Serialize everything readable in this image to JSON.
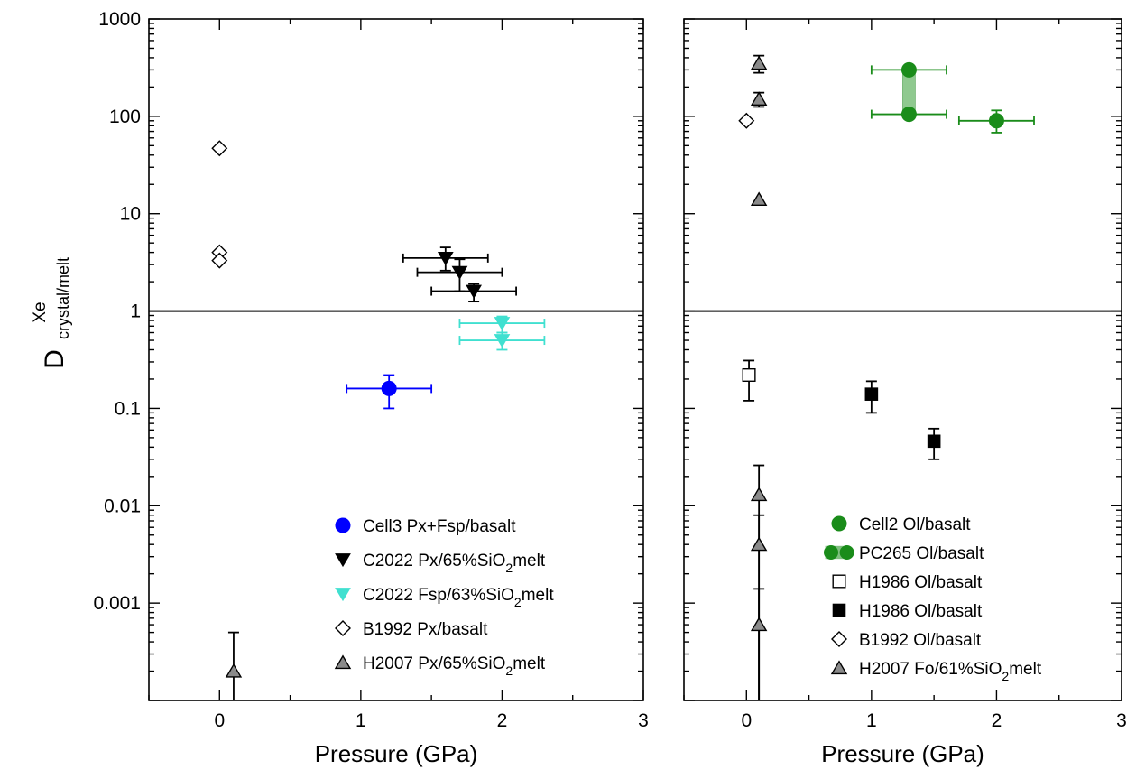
{
  "chart_data": [
    {
      "type": "scatter",
      "panel": "left",
      "xlabel": "Pressure (GPa)",
      "ylabel_main": "D",
      "ylabel_sup": "Xe",
      "ylabel_sub": "crystal/melt",
      "xlim": [
        -0.5,
        3
      ],
      "ylim": [
        0.0001,
        1000
      ],
      "yscale": "log",
      "x_ticks": [
        "0",
        "1",
        "2",
        "3"
      ],
      "y_ticks": [
        "1000",
        "100",
        "10",
        "1",
        "0.1",
        "0.01",
        "0.001"
      ],
      "reference_line_y": 1,
      "legend_position": "bottom-right",
      "series": [
        {
          "name": "Cell3 Px+Fsp/basalt",
          "marker": "circle",
          "color": "#0000ff",
          "points": [
            {
              "x": 1.2,
              "y": 0.16,
              "xerr": 0.3,
              "ylo": 0.1,
              "yhi": 0.22
            }
          ]
        },
        {
          "name": "C2022 Px/65%SiO2melt",
          "name_parts": [
            "C2022 Px/65%SiO",
            "2",
            "melt"
          ],
          "marker": "triangle-down",
          "color": "#000000",
          "points": [
            {
              "x": 1.6,
              "y": 3.5,
              "xerr": 0.3,
              "ylo": 2.6,
              "yhi": 4.5
            },
            {
              "x": 1.7,
              "y": 2.5,
              "xerr": 0.3,
              "ylo": 1.6,
              "yhi": 3.4
            },
            {
              "x": 1.8,
              "y": 1.6,
              "xerr": 0.3,
              "ylo": 1.25,
              "yhi": 1.9
            }
          ]
        },
        {
          "name": "C2022 Fsp/63%SiO2melt",
          "name_parts": [
            "C2022 Fsp/63%SiO",
            "2",
            "melt"
          ],
          "marker": "triangle-down",
          "color": "#40e0d0",
          "points": [
            {
              "x": 2.0,
              "y": 0.75,
              "xerr": 0.3,
              "ylo": 0.6,
              "yhi": 0.88
            },
            {
              "x": 2.0,
              "y": 0.5,
              "xerr": 0.3,
              "ylo": 0.4,
              "yhi": 0.6
            }
          ]
        },
        {
          "name": "B1992 Px/basalt",
          "marker": "diamond-open",
          "color": "#000000",
          "points": [
            {
              "x": 0,
              "y": 47
            },
            {
              "x": 0,
              "y": 4
            },
            {
              "x": 0,
              "y": 3.3
            }
          ]
        },
        {
          "name": "H2007 Px/65%SiO2melt",
          "name_parts": [
            "H2007 Px/65%SiO",
            "2",
            "melt"
          ],
          "marker": "triangle-up-gray",
          "color": "#808080",
          "points": [
            {
              "x": 0.1,
              "y": 0.0002,
              "ylo": 0.0001,
              "yhi": 0.0005
            }
          ]
        }
      ]
    },
    {
      "type": "scatter",
      "panel": "right",
      "xlabel": "Pressure (GPa)",
      "xlim": [
        -0.5,
        3
      ],
      "ylim": [
        0.0001,
        1000
      ],
      "yscale": "log",
      "x_ticks": [
        "0",
        "1",
        "2",
        "3"
      ],
      "reference_line_y": 1,
      "legend_position": "bottom-right",
      "series": [
        {
          "name": "Cell2 Ol/basalt",
          "marker": "circle",
          "color": "#1a8c1a",
          "points": [
            {
              "x": 2.0,
              "y": 90,
              "xerr": 0.3,
              "ylo": 68,
              "yhi": 115
            }
          ]
        },
        {
          "name": "PC265 Ol/basalt",
          "marker": "circle-pair",
          "color": "#1a8c1a",
          "points": [
            {
              "x": 1.3,
              "y": 300,
              "xerr": 0.3
            },
            {
              "x": 1.3,
              "y": 105,
              "xerr": 0.3
            }
          ]
        },
        {
          "name": "H1986 Ol/basalt",
          "marker": "square-open",
          "color": "#000000",
          "points": [
            {
              "x": 0.02,
              "y": 0.22,
              "ylo": 0.12,
              "yhi": 0.31
            }
          ]
        },
        {
          "name": "H1986 Ol/basalt",
          "marker": "square-filled",
          "color": "#000000",
          "points": [
            {
              "x": 1.0,
              "y": 0.14,
              "ylo": 0.09,
              "yhi": 0.19
            },
            {
              "x": 1.5,
              "y": 0.046,
              "ylo": 0.03,
              "yhi": 0.062
            }
          ]
        },
        {
          "name": "B1992 Ol/basalt",
          "marker": "diamond-open",
          "color": "#000000",
          "points": [
            {
              "x": 0,
              "y": 90
            }
          ]
        },
        {
          "name": "H2007 Fo/61%SiO2melt",
          "name_parts": [
            "H2007 Fo/61%SiO",
            "2",
            "melt"
          ],
          "marker": "triangle-up-gray",
          "color": "#808080",
          "points": [
            {
              "x": 0.1,
              "y": 350,
              "ylo": 280,
              "yhi": 420
            },
            {
              "x": 0.1,
              "y": 150,
              "ylo": 125,
              "yhi": 175
            },
            {
              "x": 0.1,
              "y": 14
            },
            {
              "x": 0.1,
              "y": 0.013,
              "ylo": 0.0001,
              "yhi": 0.026
            },
            {
              "x": 0.1,
              "y": 0.004,
              "ylo": 0.0001,
              "yhi": 0.008
            },
            {
              "x": 0.1,
              "y": 0.0006,
              "ylo": 0.0001,
              "yhi": 0.0014
            }
          ]
        }
      ]
    }
  ]
}
